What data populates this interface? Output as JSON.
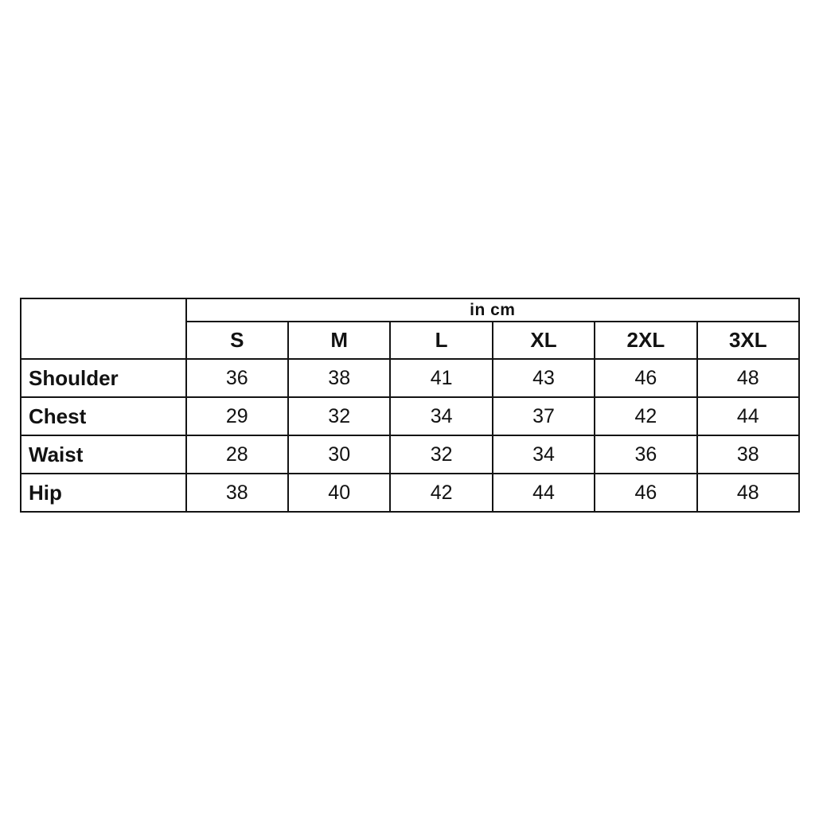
{
  "page": {
    "background_color": "#ffffff",
    "text_color": "#121212",
    "border_color": "#141414"
  },
  "chart_data": {
    "type": "table",
    "title": "in cm",
    "unit_label": "in cm",
    "columns": [
      "S",
      "M",
      "L",
      "XL",
      "2XL",
      "3XL"
    ],
    "rows": [
      {
        "label": "Shoulder",
        "values": [
          "36",
          "38",
          "41",
          "43",
          "46",
          "48"
        ]
      },
      {
        "label": "Chest",
        "values": [
          "29",
          "32",
          "34",
          "37",
          "42",
          "44"
        ]
      },
      {
        "label": "Waist",
        "values": [
          "28",
          "30",
          "32",
          "34",
          "36",
          "38"
        ]
      },
      {
        "label": "Hip",
        "values": [
          "38",
          "40",
          "42",
          "44",
          "46",
          "48"
        ]
      }
    ]
  }
}
